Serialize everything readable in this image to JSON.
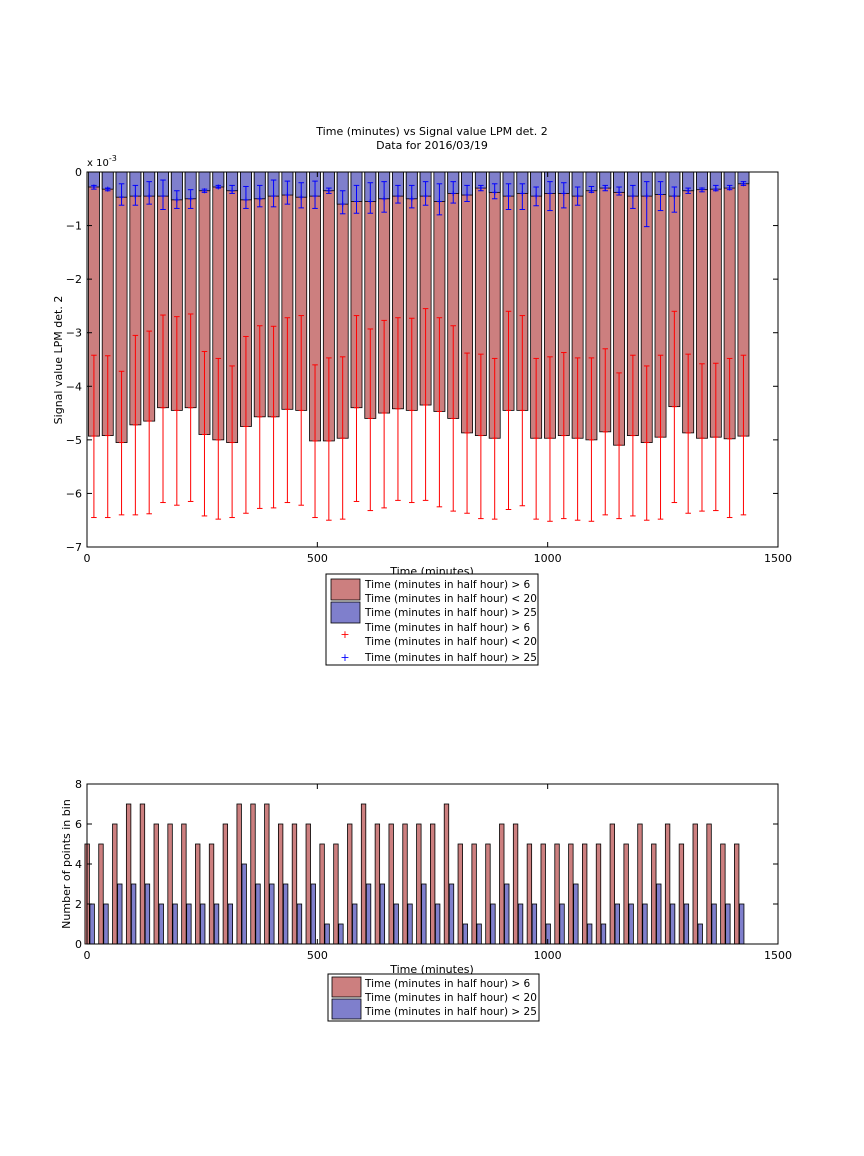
{
  "chart_data": [
    {
      "type": "bar",
      "title": "Time (minutes) vs Signal value LPM det. 2",
      "subtitle": "Data for 2016/03/19",
      "xlabel": "Time (minutes)",
      "ylabel": "Signal value LPM det. 2",
      "scale_label_base": "x 10",
      "scale_label_exp": "-3",
      "xlim": [
        0,
        1500
      ],
      "ylim": [
        -0.007,
        0
      ],
      "xticks": [
        0,
        500,
        1000,
        1500
      ],
      "yticks": [
        0,
        -1,
        -2,
        -3,
        -4,
        -5,
        -6,
        -7
      ],
      "ytick_labels": [
        "0",
        "−1",
        "−2",
        "−3",
        "−4",
        "−5",
        "−6",
        "−7"
      ],
      "legend_position": "below",
      "grid": false,
      "colors": {
        "red_bar": "#cc7f7f",
        "blue_bar": "#7f7fcc",
        "red_err": "#ff0000",
        "blue_err": "#0000ff"
      },
      "x": [
        15,
        45,
        75,
        105,
        135,
        165,
        195,
        225,
        255,
        285,
        315,
        345,
        375,
        405,
        435,
        465,
        495,
        525,
        555,
        585,
        615,
        645,
        675,
        705,
        735,
        765,
        795,
        825,
        855,
        885,
        915,
        945,
        975,
        1005,
        1035,
        1065,
        1095,
        1125,
        1155,
        1185,
        1215,
        1245,
        1275,
        1305,
        1335,
        1365,
        1395,
        1425
      ],
      "series": [
        {
          "name": "Time (minutes in half hour) > 6\nTime (minutes in half hour) < 20",
          "values": [
            -4.93,
            -4.92,
            -5.05,
            -4.72,
            -4.65,
            -4.4,
            -4.45,
            -4.4,
            -4.9,
            -5.0,
            -5.05,
            -4.75,
            -4.57,
            -4.57,
            -4.43,
            -4.45,
            -5.02,
            -5.02,
            -4.97,
            -4.4,
            -4.6,
            -4.5,
            -4.42,
            -4.45,
            -4.35,
            -4.47,
            -4.6,
            -4.87,
            -4.92,
            -4.97,
            -4.45,
            -4.45,
            -4.97,
            -4.97,
            -4.92,
            -4.97,
            -5.0,
            -4.85,
            -5.1,
            -4.92,
            -5.05,
            -4.95,
            -4.38,
            -4.87,
            -4.97,
            -4.95,
            -4.98,
            -4.93
          ],
          "err_low": [
            -6.45,
            -6.45,
            -6.4,
            -6.4,
            -6.38,
            -6.17,
            -6.22,
            -6.15,
            -6.42,
            -6.48,
            -6.45,
            -6.37,
            -6.28,
            -6.27,
            -6.17,
            -6.22,
            -6.45,
            -6.5,
            -6.48,
            -6.15,
            -6.32,
            -6.27,
            -6.13,
            -6.17,
            -6.13,
            -6.25,
            -6.33,
            -6.37,
            -6.47,
            -6.48,
            -6.3,
            -6.23,
            -6.48,
            -6.52,
            -6.47,
            -6.5,
            -6.52,
            -6.4,
            -6.47,
            -6.42,
            -6.5,
            -6.48,
            -6.17,
            -6.37,
            -6.33,
            -6.32,
            -6.45,
            -6.4
          ],
          "err_high": [
            -3.42,
            -3.43,
            -3.72,
            -3.05,
            -2.97,
            -2.67,
            -2.7,
            -2.65,
            -3.35,
            -3.48,
            -3.62,
            -3.07,
            -2.87,
            -2.88,
            -2.72,
            -2.68,
            -3.6,
            -3.47,
            -3.45,
            -2.68,
            -2.93,
            -2.77,
            -2.72,
            -2.73,
            -2.55,
            -2.72,
            -2.87,
            -3.38,
            -3.4,
            -3.48,
            -2.6,
            -2.68,
            -3.48,
            -3.45,
            -3.37,
            -3.47,
            -3.47,
            -3.3,
            -3.75,
            -3.42,
            -3.62,
            -3.42,
            -2.6,
            -3.4,
            -3.58,
            -3.57,
            -3.48,
            -3.42
          ]
        },
        {
          "name": "Time (minutes in half hour) > 25",
          "values": [
            -0.28,
            -0.32,
            -0.47,
            -0.45,
            -0.45,
            -0.45,
            -0.52,
            -0.5,
            -0.35,
            -0.28,
            -0.35,
            -0.52,
            -0.5,
            -0.45,
            -0.43,
            -0.47,
            -0.45,
            -0.35,
            -0.6,
            -0.55,
            -0.55,
            -0.5,
            -0.45,
            -0.5,
            -0.45,
            -0.55,
            -0.4,
            -0.43,
            -0.3,
            -0.38,
            -0.45,
            -0.4,
            -0.45,
            -0.4,
            -0.4,
            -0.45,
            -0.35,
            -0.3,
            -0.38,
            -0.45,
            -0.45,
            -0.42,
            -0.45,
            -0.35,
            -0.33,
            -0.32,
            -0.3,
            -0.22
          ],
          "err_low": [
            -0.32,
            -0.35,
            -0.62,
            -0.62,
            -0.6,
            -0.7,
            -0.68,
            -0.68,
            -0.38,
            -0.3,
            -0.4,
            -0.68,
            -0.65,
            -0.65,
            -0.6,
            -0.67,
            -0.68,
            -0.4,
            -0.78,
            -0.77,
            -0.77,
            -0.75,
            -0.58,
            -0.67,
            -0.62,
            -0.8,
            -0.58,
            -0.55,
            -0.35,
            -0.5,
            -0.7,
            -0.7,
            -0.63,
            -0.72,
            -0.67,
            -0.62,
            -0.38,
            -0.35,
            -0.43,
            -0.68,
            -1.02,
            -0.72,
            -0.75,
            -0.4,
            -0.37,
            -0.35,
            -0.33,
            -0.25
          ],
          "err_high": [
            -0.25,
            -0.3,
            -0.22,
            -0.25,
            -0.18,
            -0.15,
            -0.35,
            -0.33,
            -0.32,
            -0.25,
            -0.25,
            -0.27,
            -0.25,
            -0.15,
            -0.17,
            -0.2,
            -0.17,
            -0.3,
            -0.35,
            -0.25,
            -0.2,
            -0.18,
            -0.25,
            -0.25,
            -0.18,
            -0.22,
            -0.18,
            -0.25,
            -0.25,
            -0.22,
            -0.22,
            -0.22,
            -0.28,
            -0.18,
            -0.2,
            -0.28,
            -0.27,
            -0.25,
            -0.28,
            -0.25,
            -0.18,
            -0.18,
            -0.28,
            -0.3,
            -0.3,
            -0.25,
            -0.25,
            -0.18
          ]
        }
      ]
    },
    {
      "type": "bar",
      "xlabel": "Time (minutes)",
      "ylabel": "Number of points in bin",
      "xlim": [
        0,
        1500
      ],
      "ylim": [
        0,
        8
      ],
      "xticks": [
        0,
        500,
        1000,
        1500
      ],
      "yticks": [
        0,
        2,
        4,
        6,
        8
      ],
      "legend_position": "below",
      "grid": false,
      "x": [
        15,
        45,
        75,
        105,
        135,
        165,
        195,
        225,
        255,
        285,
        315,
        345,
        375,
        405,
        435,
        465,
        495,
        525,
        555,
        585,
        615,
        645,
        675,
        705,
        735,
        765,
        795,
        825,
        855,
        885,
        915,
        945,
        975,
        1005,
        1035,
        1065,
        1095,
        1125,
        1155,
        1185,
        1215,
        1245,
        1275,
        1305,
        1335,
        1365,
        1395,
        1425
      ],
      "series": [
        {
          "name": "Time (minutes in half hour) > 6\nTime (minutes in half hour) < 20",
          "values": [
            5,
            5,
            6,
            7,
            7,
            6,
            6,
            6,
            5,
            5,
            6,
            7,
            7,
            7,
            6,
            6,
            6,
            5,
            5,
            6,
            7,
            6,
            6,
            6,
            6,
            6,
            7,
            5,
            5,
            5,
            6,
            6,
            5,
            5,
            5,
            5,
            5,
            5,
            6,
            5,
            6,
            5,
            6,
            5,
            6,
            6,
            5,
            5
          ],
          "color": "#cc7f7f"
        },
        {
          "name": "Time (minutes in half hour) > 25",
          "values": [
            2,
            2,
            3,
            3,
            3,
            2,
            2,
            2,
            2,
            2,
            2,
            4,
            3,
            3,
            3,
            2,
            3,
            1,
            1,
            2,
            3,
            3,
            2,
            2,
            3,
            2,
            3,
            1,
            1,
            2,
            3,
            2,
            2,
            1,
            2,
            3,
            1,
            1,
            2,
            2,
            2,
            3,
            2,
            2,
            1,
            2,
            2,
            2
          ],
          "color": "#7f7fcc"
        }
      ]
    }
  ],
  "legend1": {
    "red_bar_line1": "Time (minutes in half hour) > 6",
    "red_bar_line2": "Time (minutes in half hour) < 20",
    "blue_bar": "Time (minutes in half hour) > 25",
    "red_marker_line1": "Time (minutes in half hour) > 6",
    "red_marker_line2": "Time (minutes in half hour) < 20",
    "blue_marker": "Time (minutes in half hour) > 25",
    "marker_symbol": "+"
  },
  "legend2": {
    "red_bar": "Time (minutes in half hour) > 6",
    "mid_line": "Time (minutes in half hour) < 20",
    "blue_bar": "Time (minutes in half hour) > 25"
  }
}
